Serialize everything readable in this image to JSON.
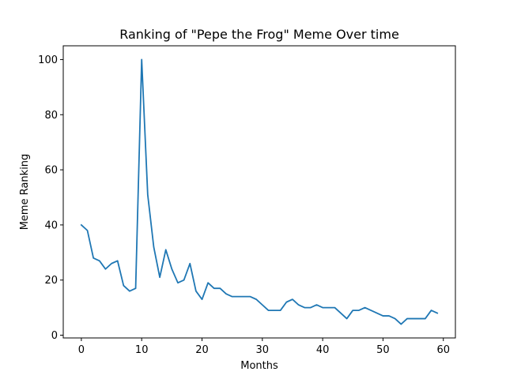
{
  "chart_data": {
    "type": "line",
    "title": "Ranking of \"Pepe the Frog\" Meme Over time",
    "xlabel": "Months",
    "ylabel": "Meme Ranking",
    "xlim": [
      -3,
      62
    ],
    "ylim": [
      -1,
      105
    ],
    "xticks": [
      0,
      10,
      20,
      30,
      40,
      50,
      60
    ],
    "yticks": [
      0,
      20,
      40,
      60,
      80,
      100
    ],
    "grid": false,
    "legend": "none",
    "line_color": "#1f77b4",
    "x": [
      0,
      1,
      2,
      3,
      4,
      5,
      6,
      7,
      8,
      9,
      10,
      11,
      12,
      13,
      14,
      15,
      16,
      17,
      18,
      19,
      20,
      21,
      22,
      23,
      24,
      25,
      26,
      27,
      28,
      29,
      30,
      31,
      32,
      33,
      34,
      35,
      36,
      37,
      38,
      39,
      40,
      41,
      42,
      43,
      44,
      45,
      46,
      47,
      48,
      49,
      50,
      51,
      52,
      53,
      54,
      55,
      56,
      57,
      58,
      59
    ],
    "series": [
      {
        "values": [
          40,
          38,
          28,
          27,
          24,
          26,
          27,
          18,
          16,
          17,
          100,
          51,
          32,
          21,
          31,
          24,
          19,
          20,
          26,
          16,
          13,
          19,
          17,
          17,
          15,
          14,
          14,
          14,
          14,
          13,
          11,
          9,
          9,
          9,
          12,
          13,
          11,
          10,
          10,
          11,
          10,
          10,
          10,
          8,
          6,
          9,
          9,
          10,
          9,
          8,
          7,
          7,
          6,
          4,
          6,
          6,
          6,
          6,
          9,
          8
        ]
      }
    ]
  }
}
